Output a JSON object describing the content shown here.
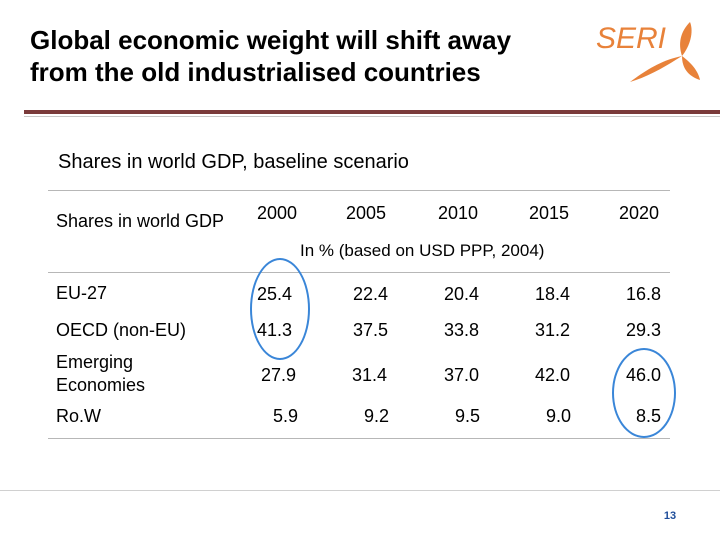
{
  "slide": {
    "title_line1": "Global economic weight will shift away",
    "title_line2": "from the old industrialised countries",
    "logo_text": "SERI",
    "subtitle": "Shares in world GDP, baseline scenario",
    "page_number": "13"
  },
  "table": {
    "corner_label": "Shares in world GDP",
    "years": [
      "2000",
      "2005",
      "2010",
      "2015",
      "2020"
    ],
    "unit_note": "In % (based on USD PPP, 2004)",
    "rows": [
      {
        "label": "EU-27",
        "values": [
          "25.4",
          "22.4",
          "20.4",
          "18.4",
          "16.8"
        ]
      },
      {
        "label": "OECD (non-EU)",
        "values": [
          "41.3",
          "37.5",
          "33.8",
          "31.2",
          "29.3"
        ]
      },
      {
        "label": "Emerging Economies",
        "values": [
          "27.9",
          "31.4",
          "37.0",
          "42.0",
          "46.0"
        ]
      },
      {
        "label": "Ro.W",
        "values": [
          "5.9",
          "9.2",
          "9.5",
          "9.0",
          "8.5"
        ]
      }
    ]
  },
  "colors": {
    "title_rule": "#7a3a3a",
    "highlight": "#3a86d8",
    "logo": "#e8823a",
    "page_number": "#1f4e9a"
  }
}
